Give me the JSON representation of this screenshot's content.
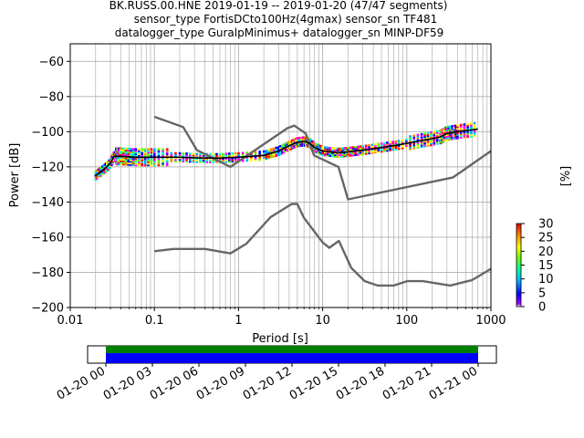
{
  "title_lines": [
    "BK.RUSS.00.HNE   2019-01-19 -- 2019-01-20  (47/47 segments)",
    "sensor_type FortisDCto100Hz(4gmax) sensor_sn TF481",
    "datalogger_type GuralpMinimus+ datalogger_sn MINP-DF59"
  ],
  "colorbar": {
    "label": "[%]",
    "ticks": [
      "0",
      "5",
      "10",
      "15",
      "20",
      "25",
      "30"
    ],
    "range": [
      0,
      30
    ]
  },
  "timeline": {
    "tick_labels": [
      "01-20 00",
      "01-20 03",
      "01-20 06",
      "01-20 09",
      "01-20 12",
      "01-20 15",
      "01-20 18",
      "01-20 21",
      "01-21 00"
    ],
    "bar_colors": [
      "#008000",
      "#0000ff"
    ],
    "coverage": "01-20 00 to 01-21 00"
  },
  "chart_data": {
    "type": "line",
    "title": "BK.RUSS.00.HNE   2019-01-19 -- 2019-01-20  (47/47 segments)",
    "xlabel": "Period [s]",
    "ylabel": "Power [dB]",
    "xscale": "log",
    "xlim": [
      0.01,
      1000
    ],
    "ylim": [
      -200,
      -50
    ],
    "x_ticks": [
      "0.01",
      "0.1",
      "1",
      "10",
      "100",
      "1000"
    ],
    "y_ticks": [
      "−60",
      "−80",
      "−100",
      "−120",
      "−140",
      "−160",
      "−180",
      "−200"
    ],
    "grid": true,
    "series": [
      {
        "role": "nhnm",
        "color": "#666666",
        "points": [
          [
            0.1,
            -91.5
          ],
          [
            0.22,
            -97.4
          ],
          [
            0.32,
            -110.5
          ],
          [
            0.8,
            -120
          ],
          [
            3.8,
            -98.0
          ],
          [
            4.6,
            -96.5
          ],
          [
            6.3,
            -101.0
          ],
          [
            7.9,
            -113.5
          ],
          [
            15.4,
            -120.0
          ],
          [
            20,
            -138.5
          ],
          [
            354.8,
            -126.0
          ],
          [
            1000,
            -111.0
          ]
        ]
      },
      {
        "role": "nlnm",
        "color": "#666666",
        "points": [
          [
            0.1,
            -168.0
          ],
          [
            0.17,
            -166.7
          ],
          [
            0.4,
            -166.7
          ],
          [
            0.8,
            -169.2
          ],
          [
            1.24,
            -163.7
          ],
          [
            2.4,
            -148.6
          ],
          [
            4.3,
            -141.1
          ],
          [
            5.0,
            -141.1
          ],
          [
            6.0,
            -149.0
          ],
          [
            10,
            -163.0
          ],
          [
            12,
            -166.0
          ],
          [
            15.6,
            -162.1
          ],
          [
            21.9,
            -177.5
          ],
          [
            31.6,
            -185.0
          ],
          [
            45,
            -187.5
          ],
          [
            70,
            -187.5
          ],
          [
            101,
            -185.0
          ],
          [
            154,
            -185.0
          ],
          [
            328,
            -187.5
          ],
          [
            600,
            -184.4
          ],
          [
            1000,
            -178.0
          ]
        ]
      },
      {
        "role": "mode",
        "color": "#000000",
        "points": [
          [
            0.02,
            -125
          ],
          [
            0.025,
            -121.5
          ],
          [
            0.03,
            -118
          ],
          [
            0.033,
            -114
          ],
          [
            0.04,
            -114
          ],
          [
            0.06,
            -114.5
          ],
          [
            0.1,
            -114.5
          ],
          [
            0.2,
            -114.5
          ],
          [
            0.35,
            -115
          ],
          [
            0.6,
            -115
          ],
          [
            1.0,
            -114.5
          ],
          [
            2.0,
            -113.5
          ],
          [
            3.0,
            -111
          ],
          [
            4.0,
            -108
          ],
          [
            5.0,
            -106
          ],
          [
            6.0,
            -105.5
          ],
          [
            7.0,
            -106.5
          ],
          [
            8.0,
            -109
          ],
          [
            10,
            -111
          ],
          [
            15,
            -112
          ],
          [
            20,
            -111.5
          ],
          [
            30,
            -110.5
          ],
          [
            50,
            -109
          ],
          [
            80,
            -107.5
          ],
          [
            150,
            -105
          ],
          [
            250,
            -103
          ],
          [
            300,
            -101
          ],
          [
            400,
            -100
          ],
          [
            700,
            -98.5
          ]
        ]
      }
    ]
  }
}
